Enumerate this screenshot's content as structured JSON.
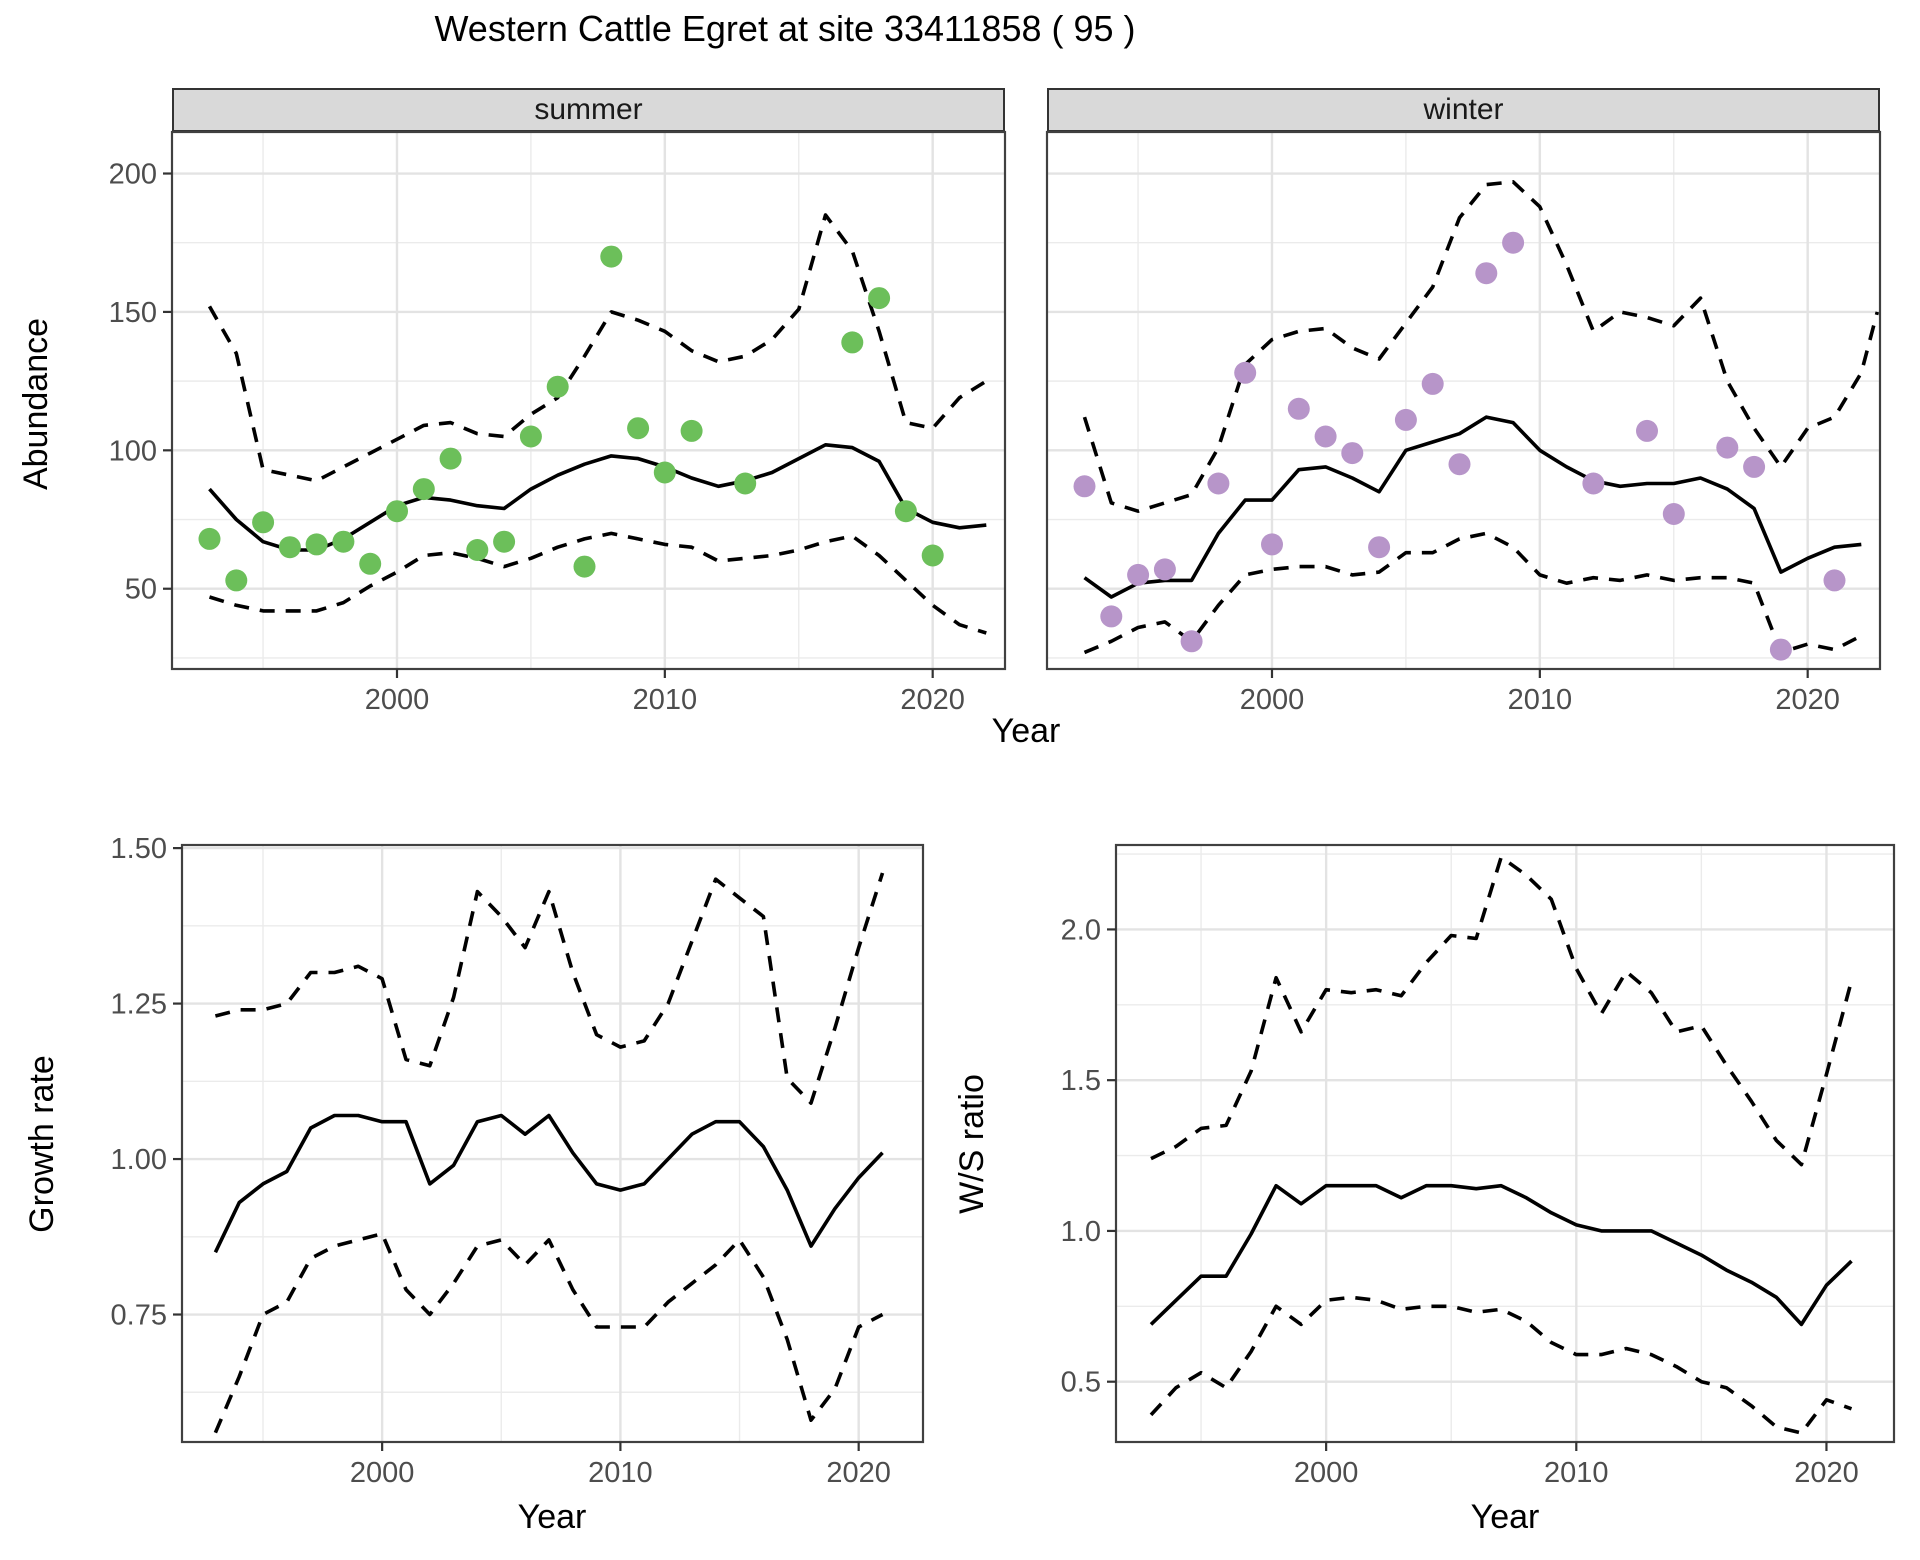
{
  "title": "Western Cattle Egret at site 33411858 ( 95 )",
  "top_figure": {
    "facets": [
      {
        "label": "summer"
      },
      {
        "label": "winter"
      }
    ],
    "y_axis_title": "Abundance",
    "x_axis_title": "Year"
  },
  "bottom_left": {
    "y_axis_title": "Growth rate",
    "x_axis_title": "Year"
  },
  "bottom_right": {
    "y_axis_title": "W/S ratio",
    "x_axis_title": "Year"
  },
  "colors": {
    "summer_points": "#6cbf5a",
    "winter_points": "#b795c9",
    "line": "#000000",
    "grid_major": "#e3e3e3",
    "grid_minor": "#ebebeb",
    "panel_border": "#404040",
    "strip_bg": "#d9d9d9",
    "tick_text": "#4d4d4d"
  },
  "chart_data": [
    {
      "id": "summer",
      "type": "line",
      "title": "summer",
      "xlabel": "Year",
      "ylabel": "Abundance",
      "xlim": [
        1991.6,
        2022.7
      ],
      "ylim": [
        21,
        215
      ],
      "x_ticks": [
        2000,
        2010,
        2020
      ],
      "x_tick_labels": [
        "2000",
        "2010",
        "2020"
      ],
      "x_minor": [
        1995,
        2005,
        2015
      ],
      "y_ticks": [
        50,
        100,
        150,
        200
      ],
      "y_tick_labels": [
        "50",
        "100",
        "150",
        "200"
      ],
      "y_minor": [
        25,
        75,
        125,
        175
      ],
      "series": [
        {
          "name": "fit",
          "style": "solid",
          "x": [
            1993,
            1994,
            1995,
            1996,
            1997,
            1998,
            1999,
            2000,
            2001,
            2002,
            2003,
            2004,
            2005,
            2006,
            2007,
            2008,
            2009,
            2010,
            2011,
            2012,
            2013,
            2014,
            2015,
            2016,
            2017,
            2018,
            2019,
            2020,
            2021,
            2022
          ],
          "y": [
            86,
            75,
            67,
            64,
            64,
            68,
            74,
            80,
            83,
            82,
            80,
            79,
            86,
            91,
            95,
            98,
            97,
            94,
            90,
            87,
            89,
            92,
            97,
            102,
            101,
            96,
            79,
            74,
            72,
            73
          ]
        },
        {
          "name": "upper_ci",
          "style": "dashed",
          "x": [
            1993,
            1994,
            1995,
            1996,
            1997,
            1998,
            1999,
            2000,
            2001,
            2002,
            2003,
            2004,
            2005,
            2006,
            2007,
            2008,
            2009,
            2010,
            2011,
            2012,
            2013,
            2014,
            2015,
            2016,
            2017,
            2018,
            2019,
            2020,
            2021,
            2022
          ],
          "y": [
            152,
            135,
            93,
            91,
            89,
            94,
            99,
            104,
            109,
            110,
            106,
            105,
            113,
            119,
            134,
            150,
            147,
            143,
            136,
            132,
            134,
            140,
            151,
            185,
            172,
            143,
            110,
            108,
            119,
            125
          ]
        },
        {
          "name": "lower_ci",
          "style": "dashed",
          "x": [
            1993,
            1994,
            1995,
            1996,
            1997,
            1998,
            1999,
            2000,
            2001,
            2002,
            2003,
            2004,
            2005,
            2006,
            2007,
            2008,
            2009,
            2010,
            2011,
            2012,
            2013,
            2014,
            2015,
            2016,
            2017,
            2018,
            2019,
            2020,
            2021,
            2022
          ],
          "y": [
            47,
            44,
            42,
            42,
            42,
            45,
            51,
            56,
            62,
            63,
            61,
            58,
            61,
            65,
            68,
            70,
            68,
            66,
            65,
            60,
            61,
            62,
            64,
            67,
            69,
            62,
            53,
            44,
            37,
            34
          ]
        }
      ],
      "points": {
        "name": "observed_abundance",
        "color": "#6cbf5a",
        "x": [
          1993,
          1994,
          1995,
          1996,
          1997,
          1998,
          1999,
          2000,
          2001,
          2002,
          2003,
          2004,
          2005,
          2006,
          2007,
          2008,
          2009,
          2010,
          2011,
          2013,
          2017,
          2018,
          2019,
          2020
        ],
        "y": [
          68,
          53,
          74,
          65,
          66,
          67,
          59,
          78,
          86,
          97,
          64,
          67,
          105,
          123,
          58,
          170,
          108,
          92,
          107,
          88,
          139,
          155,
          78,
          62
        ]
      }
    },
    {
      "id": "winter",
      "type": "line",
      "title": "winter",
      "xlabel": "Year",
      "ylabel": "Abundance",
      "xlim": [
        1991.6,
        2022.7
      ],
      "ylim": [
        21,
        215
      ],
      "x_ticks": [
        2000,
        2010,
        2020
      ],
      "x_tick_labels": [
        "2000",
        "2010",
        "2020"
      ],
      "x_minor": [
        1995,
        2005,
        2015
      ],
      "y_ticks": [
        50,
        100,
        150,
        200
      ],
      "y_tick_labels": [
        "50",
        "100",
        "150",
        "200"
      ],
      "y_minor": [
        25,
        75,
        125,
        175
      ],
      "series": [
        {
          "name": "fit",
          "style": "solid",
          "x": [
            1993,
            1994,
            1995,
            1996,
            1997,
            1998,
            1999,
            2000,
            2001,
            2002,
            2003,
            2004,
            2005,
            2006,
            2007,
            2008,
            2009,
            2010,
            2011,
            2012,
            2013,
            2014,
            2015,
            2016,
            2017,
            2018,
            2019,
            2020,
            2021,
            2022
          ],
          "y": [
            54,
            47,
            52,
            53,
            53,
            70,
            82,
            82,
            93,
            94,
            90,
            85,
            100,
            103,
            106,
            112,
            110,
            100,
            94,
            89,
            87,
            88,
            88,
            90,
            86,
            79,
            56,
            61,
            65,
            66
          ]
        },
        {
          "name": "upper_ci",
          "style": "dashed",
          "x": [
            1993,
            1994,
            1995,
            1996,
            1997,
            1998,
            1999,
            2000,
            2001,
            2002,
            2003,
            2004,
            2005,
            2006,
            2007,
            2008,
            2009,
            2010,
            2011,
            2012,
            2013,
            2014,
            2015,
            2016,
            2017,
            2018,
            2019,
            2020,
            2021,
            2022,
            2022.6
          ],
          "y": [
            112,
            81,
            78,
            81,
            84,
            101,
            131,
            140,
            143,
            144,
            137,
            133,
            146,
            159,
            184,
            196,
            197,
            188,
            167,
            143,
            150,
            148,
            145,
            155,
            125,
            108,
            94,
            108,
            112,
            128,
            150
          ]
        },
        {
          "name": "lower_ci",
          "style": "dashed",
          "x": [
            1993,
            1994,
            1995,
            1996,
            1997,
            1998,
            1999,
            2000,
            2001,
            2002,
            2003,
            2004,
            2005,
            2006,
            2007,
            2008,
            2009,
            2010,
            2011,
            2012,
            2013,
            2014,
            2015,
            2016,
            2017,
            2018,
            2019,
            2020,
            2021,
            2022
          ],
          "y": [
            27,
            31,
            36,
            38,
            31,
            44,
            55,
            57,
            58,
            58,
            55,
            56,
            63,
            63,
            68,
            70,
            65,
            55,
            52,
            54,
            53,
            55,
            53,
            54,
            54,
            52,
            27,
            30,
            28,
            33
          ]
        }
      ],
      "points": {
        "name": "observed_abundance",
        "color": "#b795c9",
        "x": [
          1993,
          1994,
          1995,
          1996,
          1997,
          1998,
          1999,
          2000,
          2001,
          2002,
          2003,
          2004,
          2005,
          2006,
          2007,
          2008,
          2009,
          2012,
          2014,
          2015,
          2017,
          2018,
          2019,
          2021
        ],
        "y": [
          87,
          40,
          55,
          57,
          31,
          88,
          128,
          66,
          115,
          105,
          99,
          65,
          111,
          124,
          95,
          164,
          175,
          88,
          107,
          77,
          101,
          94,
          28,
          53
        ]
      }
    },
    {
      "id": "growth",
      "type": "line",
      "title": "",
      "xlabel": "Year",
      "ylabel": "Growth rate",
      "xlim": [
        1991.6,
        2022.7
      ],
      "ylim": [
        0.545,
        1.505
      ],
      "x_ticks": [
        2000,
        2010,
        2020
      ],
      "x_tick_labels": [
        "2000",
        "2010",
        "2020"
      ],
      "x_minor": [
        1995,
        2005,
        2015
      ],
      "y_ticks": [
        0.75,
        1.0,
        1.25,
        1.5
      ],
      "y_tick_labels": [
        "0.75",
        "1.00",
        "1.25",
        "1.50"
      ],
      "y_minor": [
        0.625,
        0.875,
        1.125,
        1.375
      ],
      "series": [
        {
          "name": "fit",
          "style": "solid",
          "x": [
            1993,
            1994,
            1995,
            1996,
            1997,
            1998,
            1999,
            2000,
            2001,
            2002,
            2003,
            2004,
            2005,
            2006,
            2007,
            2008,
            2009,
            2010,
            2011,
            2012,
            2013,
            2014,
            2015,
            2016,
            2017,
            2018,
            2019,
            2020,
            2021
          ],
          "y": [
            0.85,
            0.93,
            0.96,
            0.98,
            1.05,
            1.07,
            1.07,
            1.06,
            1.06,
            0.96,
            0.99,
            1.06,
            1.07,
            1.04,
            1.07,
            1.01,
            0.96,
            0.95,
            0.96,
            1.0,
            1.04,
            1.06,
            1.06,
            1.02,
            0.95,
            0.86,
            0.92,
            0.97,
            1.01
          ]
        },
        {
          "name": "upper_ci",
          "style": "dashed",
          "x": [
            1993,
            1994,
            1995,
            1996,
            1997,
            1998,
            1999,
            2000,
            2001,
            2002,
            2003,
            2004,
            2005,
            2006,
            2007,
            2008,
            2009,
            2010,
            2011,
            2012,
            2013,
            2014,
            2015,
            2016,
            2017,
            2018,
            2019,
            2020,
            2021
          ],
          "y": [
            1.23,
            1.24,
            1.24,
            1.25,
            1.3,
            1.3,
            1.31,
            1.29,
            1.16,
            1.15,
            1.26,
            1.43,
            1.39,
            1.34,
            1.43,
            1.3,
            1.2,
            1.18,
            1.19,
            1.25,
            1.35,
            1.45,
            1.42,
            1.39,
            1.13,
            1.09,
            1.21,
            1.34,
            1.46
          ]
        },
        {
          "name": "lower_ci",
          "style": "dashed",
          "x": [
            1993,
            1994,
            1995,
            1996,
            1997,
            1998,
            1999,
            2000,
            2001,
            2002,
            2003,
            2004,
            2005,
            2006,
            2007,
            2008,
            2009,
            2010,
            2011,
            2012,
            2013,
            2014,
            2015,
            2016,
            2017,
            2018,
            2019,
            2020,
            2021
          ],
          "y": [
            0.56,
            0.65,
            0.75,
            0.77,
            0.84,
            0.86,
            0.87,
            0.88,
            0.79,
            0.75,
            0.8,
            0.86,
            0.87,
            0.83,
            0.87,
            0.79,
            0.73,
            0.73,
            0.73,
            0.77,
            0.8,
            0.83,
            0.87,
            0.81,
            0.71,
            0.58,
            0.63,
            0.73,
            0.75
          ]
        }
      ]
    },
    {
      "id": "ws",
      "type": "line",
      "title": "",
      "xlabel": "Year",
      "ylabel": "W/S ratio",
      "xlim": [
        1991.6,
        2022.7
      ],
      "ylim": [
        0.3,
        2.28
      ],
      "x_ticks": [
        2000,
        2010,
        2020
      ],
      "x_tick_labels": [
        "2000",
        "2010",
        "2020"
      ],
      "x_minor": [
        1995,
        2005,
        2015
      ],
      "y_ticks": [
        0.5,
        1.0,
        1.5,
        2.0
      ],
      "y_tick_labels": [
        "0.5",
        "1.0",
        "1.5",
        "2.0"
      ],
      "y_minor": [
        0.75,
        1.25,
        1.75,
        2.25
      ],
      "series": [
        {
          "name": "fit",
          "style": "solid",
          "x": [
            1993,
            1994,
            1995,
            1996,
            1997,
            1998,
            1999,
            2000,
            2001,
            2002,
            2003,
            2004,
            2005,
            2006,
            2007,
            2008,
            2009,
            2010,
            2011,
            2012,
            2013,
            2014,
            2015,
            2016,
            2017,
            2018,
            2019,
            2020,
            2021
          ],
          "y": [
            0.69,
            0.77,
            0.85,
            0.85,
            0.99,
            1.15,
            1.09,
            1.15,
            1.15,
            1.15,
            1.11,
            1.15,
            1.15,
            1.14,
            1.15,
            1.11,
            1.06,
            1.02,
            1.0,
            1.0,
            1.0,
            0.96,
            0.92,
            0.87,
            0.83,
            0.78,
            0.69,
            0.82,
            0.9
          ]
        },
        {
          "name": "upper_ci",
          "style": "dashed",
          "x": [
            1993,
            1994,
            1995,
            1996,
            1997,
            1998,
            1999,
            2000,
            2001,
            2002,
            2003,
            2004,
            2005,
            2006,
            2007,
            2008,
            2009,
            2010,
            2011,
            2012,
            2013,
            2014,
            2015,
            2016,
            2017,
            2018,
            2019,
            2020,
            2021
          ],
          "y": [
            1.24,
            1.28,
            1.34,
            1.35,
            1.53,
            1.84,
            1.66,
            1.8,
            1.79,
            1.8,
            1.78,
            1.89,
            1.98,
            1.97,
            2.24,
            2.18,
            2.1,
            1.87,
            1.72,
            1.86,
            1.79,
            1.66,
            1.68,
            1.55,
            1.43,
            1.3,
            1.22,
            1.52,
            1.83
          ]
        },
        {
          "name": "lower_ci",
          "style": "dashed",
          "x": [
            1993,
            1994,
            1995,
            1996,
            1997,
            1998,
            1999,
            2000,
            2001,
            2002,
            2003,
            2004,
            2005,
            2006,
            2007,
            2008,
            2009,
            2010,
            2011,
            2012,
            2013,
            2014,
            2015,
            2016,
            2017,
            2018,
            2019,
            2020,
            2021
          ],
          "y": [
            0.39,
            0.48,
            0.53,
            0.48,
            0.6,
            0.75,
            0.69,
            0.77,
            0.78,
            0.77,
            0.74,
            0.75,
            0.75,
            0.73,
            0.74,
            0.7,
            0.63,
            0.59,
            0.59,
            0.61,
            0.59,
            0.55,
            0.5,
            0.48,
            0.42,
            0.35,
            0.33,
            0.44,
            0.41
          ]
        }
      ]
    }
  ]
}
